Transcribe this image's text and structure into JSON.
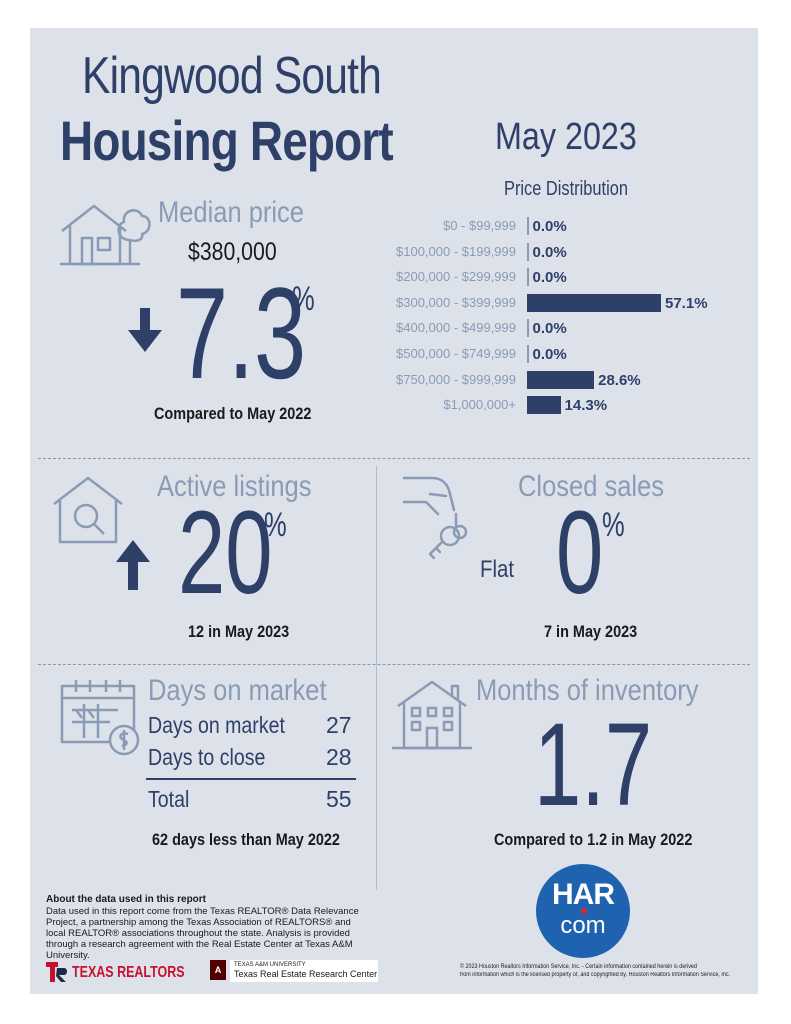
{
  "header": {
    "title_line1": "Kingwood South",
    "title_line2": "Housing Report",
    "month": "May 2023"
  },
  "median_price": {
    "title": "Median price",
    "price": "$380,000",
    "change": "7.3",
    "change_unit": "%",
    "direction": "down",
    "comparison": "Compared to May 2022"
  },
  "price_distribution": {
    "title": "Price Distribution",
    "rows": [
      {
        "label": "$0 - $99,999",
        "value": "0.0%",
        "share": 0.0
      },
      {
        "label": "$100,000 - $199,999",
        "value": "0.0%",
        "share": 0.0
      },
      {
        "label": "$200,000 - $299,999",
        "value": "0.0%",
        "share": 0.0
      },
      {
        "label": "$300,000 - $399,999",
        "value": "57.1%",
        "share": 57.1
      },
      {
        "label": "$400,000 - $499,999",
        "value": "0.0%",
        "share": 0.0
      },
      {
        "label": "$500,000 - $749,999",
        "value": "0.0%",
        "share": 0.0
      },
      {
        "label": "$750,000 - $999,999",
        "value": "28.6%",
        "share": 28.6
      },
      {
        "label": "$1,000,000+",
        "value": "14.3%",
        "share": 14.3
      }
    ]
  },
  "active_listings": {
    "title": "Active listings",
    "change": "20",
    "change_unit": "%",
    "direction": "up",
    "caption": "12 in May 2023"
  },
  "closed_sales": {
    "title": "Closed sales",
    "flat_label": "Flat",
    "change": "0",
    "change_unit": "%",
    "caption": "7 in May 2023"
  },
  "days_on_market": {
    "title": "Days on market",
    "rows": [
      {
        "label": "Days on market",
        "value": "27"
      },
      {
        "label": "Days to close",
        "value": "28"
      }
    ],
    "total_label": "Total",
    "total_value": "55",
    "caption": "62 days less than May 2022"
  },
  "months_inventory": {
    "title": "Months of inventory",
    "value": "1.7",
    "caption": "Compared to 1.2 in May 2022"
  },
  "footer": {
    "about_title": "About the data used in this report",
    "about_text": "Data used in this report come from the Texas REALTOR® Data Relevance Project, a partnership among the Texas Association of REALTORS® and local REALTOR® associations throughout the state. Analysis is provided through a research agreement with the Real Estate Center at Texas A&M University.",
    "texas_realtors": "TEXAS REALTORS",
    "tamu_small": "TEXAS A&M UNIVERSITY",
    "tamu_center": "Texas Real Estate Research Center",
    "har_top": "HAR",
    "har_bottom": "com",
    "copyright_line1": "© 2023 Houston Realtors Information Service, Inc. - Certain information contained herein is derived",
    "copyright_line2": "from information which is the licensed property of, and copyrighted by, Houston Realtors Information Service, Inc."
  },
  "colors": {
    "navy": "#2e3f68",
    "gray_blue": "#8a9bb5",
    "background": "#dde2ea",
    "har_blue": "#1f62b0",
    "texas_red": "#c8102e",
    "tamu_maroon": "#500000"
  }
}
